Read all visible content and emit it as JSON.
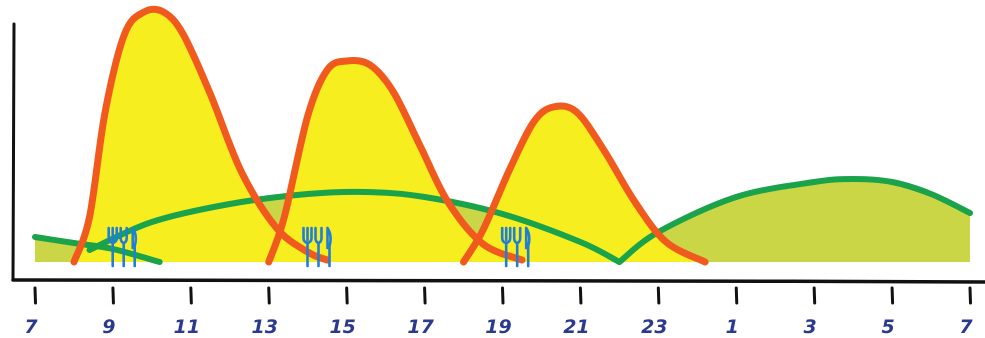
{
  "chart_data": {
    "type": "area",
    "title": "",
    "xlabel": "",
    "ylabel": "",
    "x_ticks": [
      "7",
      "9",
      "11",
      "13",
      "15",
      "17",
      "19",
      "21",
      "23",
      "1",
      "3",
      "5",
      "7"
    ],
    "x_tick_hours": [
      7,
      9,
      11,
      13,
      15,
      17,
      19,
      21,
      23,
      25,
      27,
      29,
      31
    ],
    "xlim": [
      7,
      31
    ],
    "ylim": [
      0,
      100
    ],
    "grid": false,
    "legend": "none",
    "meals": [
      {
        "icon": "fork-knife-icon",
        "hour": 9.2
      },
      {
        "icon": "fork-knife-icon",
        "hour": 14.2
      },
      {
        "icon": "fork-knife-icon",
        "hour": 19.3
      }
    ],
    "series": [
      {
        "style": "green-wave",
        "color": "#1aa34a",
        "fill": "#c8d43c",
        "segments": [
          {
            "x": [
              7,
              8,
              9,
              10.2
            ],
            "y": [
              25,
              19,
              13,
              0
            ]
          },
          {
            "x": [
              8.4,
              10,
              12,
              14,
              15.5,
              17,
              19,
              21,
              22
            ],
            "y": [
              12,
              40,
              58,
              68,
              70,
              65,
              48,
              20,
              0
            ]
          },
          {
            "x": [
              22,
              23,
              25,
              27,
              28,
              29,
              30,
              31
            ],
            "y": [
              0,
              30,
              65,
              80,
              83,
              80,
              68,
              49
            ]
          }
        ]
      },
      {
        "style": "orange-peaks",
        "color": "#f05a1e",
        "fill": "#f6ee1e",
        "segments": [
          {
            "x": [
              8,
              8.4,
              8.8,
              9.3,
              9.8,
              10.3,
              10.8,
              11.5,
              12.3,
              13.2,
              14,
              14.5
            ],
            "y": [
              0,
              45,
              150,
              228,
              250,
              250,
              228,
              168,
              90,
              34,
              10,
              2
            ]
          },
          {
            "x": [
              13,
              13.4,
              14,
              14.5,
              15,
              15.6,
              16.2,
              16.9,
              17.6,
              18.5,
              19.5
            ],
            "y": [
              0,
              45,
              146,
              192,
              201,
              197,
              170,
              115,
              60,
              18,
              2
            ]
          },
          {
            "x": [
              18,
              18.5,
              19.2,
              19.8,
              20.3,
              20.9,
              21.6,
              22.4,
              23.2,
              24.2
            ],
            "y": [
              0,
              32,
              94,
              140,
              155,
              150,
              112,
              60,
              20,
              0
            ]
          }
        ]
      }
    ]
  }
}
